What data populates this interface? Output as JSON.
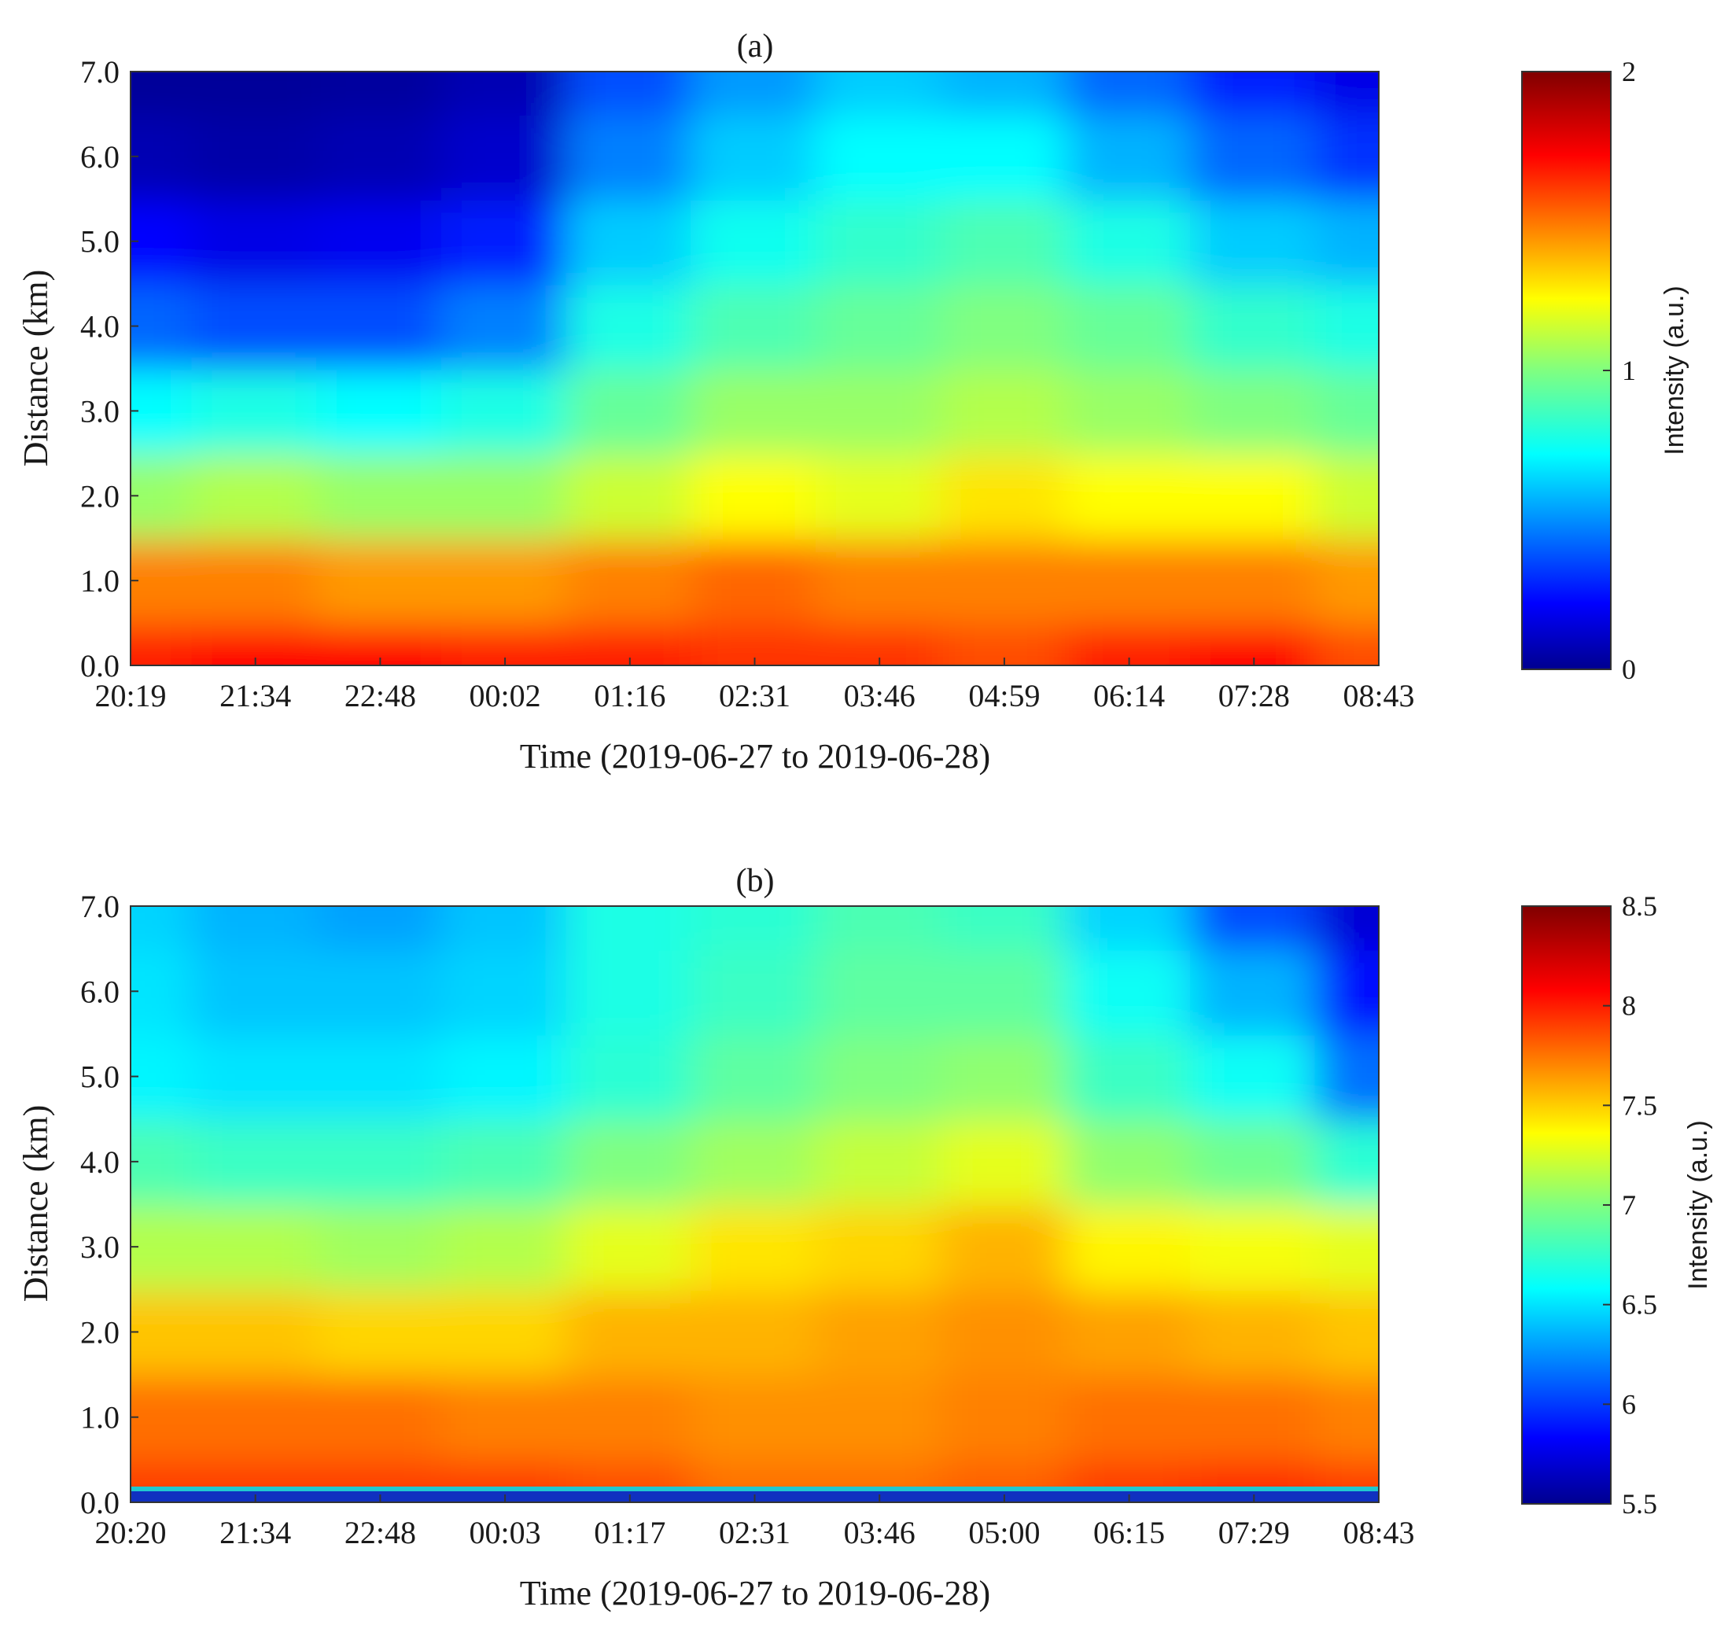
{
  "chart_data": [
    {
      "type": "heatmap",
      "title": "(a)",
      "xlabel": "Time (2019-06-27 to 2019-06-28)",
      "ylabel": "Distance (km)",
      "x_ticks": [
        "20:19",
        "21:34",
        "22:48",
        "00:02",
        "01:16",
        "02:31",
        "03:46",
        "04:59",
        "06:14",
        "07:28",
        "08:43"
      ],
      "y_ticks": [
        "0.0",
        "1.0",
        "2.0",
        "3.0",
        "4.0",
        "5.0",
        "6.0",
        "7.0"
      ],
      "ylim": [
        0,
        7
      ],
      "colorbar": {
        "label": "Intensity (a.u.)",
        "range": [
          0,
          2
        ],
        "ticks": [
          "0",
          "1",
          "2"
        ],
        "colormap": "jet"
      },
      "field": {
        "description_values": "approximate intensity per time tick (rows: distance 0.0-7.0 km step 1.0)",
        "distance_km": [
          0,
          1,
          2,
          3,
          4,
          5,
          6,
          7
        ],
        "intensity_by_tick": [
          [
            1.7,
            1.5,
            1.05,
            0.75,
            0.45,
            0.25,
            0.1,
            0.05
          ],
          [
            1.75,
            1.5,
            1.1,
            0.8,
            0.4,
            0.2,
            0.08,
            0.05
          ],
          [
            1.75,
            1.45,
            1.05,
            0.75,
            0.4,
            0.22,
            0.1,
            0.06
          ],
          [
            1.7,
            1.45,
            1.05,
            0.8,
            0.5,
            0.3,
            0.15,
            0.1
          ],
          [
            1.7,
            1.5,
            1.15,
            0.95,
            0.8,
            0.65,
            0.5,
            0.4
          ],
          [
            1.65,
            1.55,
            1.25,
            1.05,
            0.9,
            0.78,
            0.65,
            0.55
          ],
          [
            1.65,
            1.5,
            1.2,
            1.05,
            0.95,
            0.85,
            0.75,
            0.65
          ],
          [
            1.6,
            1.5,
            1.3,
            1.1,
            1.0,
            0.9,
            0.75,
            0.6
          ],
          [
            1.7,
            1.5,
            1.25,
            1.05,
            0.95,
            0.8,
            0.6,
            0.45
          ],
          [
            1.75,
            1.5,
            1.25,
            1.0,
            0.85,
            0.65,
            0.45,
            0.3
          ],
          [
            1.6,
            1.45,
            1.15,
            0.95,
            0.8,
            0.6,
            0.35,
            0.2
          ]
        ]
      }
    },
    {
      "type": "heatmap",
      "title": "(b)",
      "xlabel": "Time (2019-06-27 to 2019-06-28)",
      "ylabel": "Distance (km)",
      "x_ticks": [
        "20:20",
        "21:34",
        "22:48",
        "00:03",
        "01:17",
        "02:31",
        "03:46",
        "05:00",
        "06:15",
        "07:29",
        "08:43"
      ],
      "y_ticks": [
        "0.0",
        "1.0",
        "2.0",
        "3.0",
        "4.0",
        "5.0",
        "6.0",
        "7.0"
      ],
      "ylim": [
        0,
        7
      ],
      "colorbar": {
        "label": "Intensity (a.u.)",
        "range": [
          5.5,
          8.5
        ],
        "ticks": [
          "5.5",
          "6",
          "6.5",
          "7",
          "7.5",
          "8",
          "8.5"
        ],
        "colormap": "jet"
      },
      "field": {
        "description_values": "approximate intensity per time tick (rows: distance 0.0-7.0 km step 1.0)",
        "distance_km": [
          0,
          1,
          2,
          3,
          4,
          5,
          6,
          7
        ],
        "intensity_by_tick": [
          [
            7.95,
            7.8,
            7.55,
            7.15,
            6.85,
            6.6,
            6.55,
            6.5
          ],
          [
            7.95,
            7.8,
            7.55,
            7.15,
            6.8,
            6.55,
            6.45,
            6.4
          ],
          [
            7.95,
            7.8,
            7.5,
            7.1,
            6.8,
            6.55,
            6.45,
            6.35
          ],
          [
            7.95,
            7.75,
            7.5,
            7.15,
            6.85,
            6.6,
            6.5,
            6.45
          ],
          [
            7.9,
            7.75,
            7.6,
            7.3,
            7.0,
            6.75,
            6.7,
            6.7
          ],
          [
            7.8,
            7.7,
            7.6,
            7.45,
            7.1,
            6.9,
            6.8,
            6.75
          ],
          [
            7.8,
            7.7,
            7.65,
            7.5,
            7.2,
            7.0,
            6.9,
            6.85
          ],
          [
            7.85,
            7.75,
            7.7,
            7.6,
            7.3,
            7.05,
            6.9,
            6.8
          ],
          [
            7.95,
            7.8,
            7.65,
            7.4,
            7.05,
            6.8,
            6.65,
            6.5
          ],
          [
            8.0,
            7.8,
            7.6,
            7.35,
            6.95,
            6.65,
            6.4,
            6.1
          ],
          [
            7.95,
            7.75,
            7.55,
            7.3,
            6.75,
            6.2,
            5.9,
            5.75
          ]
        ]
      }
    }
  ]
}
